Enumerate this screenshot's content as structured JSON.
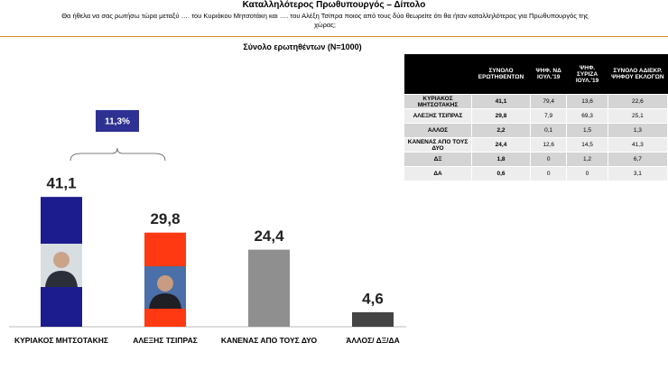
{
  "header": {
    "title": "Καταλληλότερος Πρωθυπουργός – Δίπολο",
    "subtitle": "Θα ήθελα να σας ρωτήσω τώρα μεταξύ …. του Κυριάκου Μητσοτάκη και …. του  Αλέξη Τσίπρα ποιος από τους δύο θεωρείτε ότι θα ήταν καταλληλότερος για Πρωθυπουργός της χώρας;",
    "base": "Σύνολο ερωτηθέντων (N=1000)"
  },
  "chart_data": {
    "type": "bar",
    "categories": [
      "ΚΥΡΙΑΚΟΣ ΜΗΤΣΟΤΑΚΗΣ",
      "ΑΛΕΞΗΣ ΤΣΙΠΡΑΣ",
      "ΚΑΝΕΝΑΣ ΑΠΟ ΤΟΥΣ ΔΥΟ",
      "ΆΛΛΟΣ/ ΔΞ/ΔΑ"
    ],
    "values": [
      41.1,
      29.8,
      24.4,
      4.6
    ],
    "value_labels": [
      "41,1",
      "29,8",
      "24,4",
      "4,6"
    ],
    "colors": [
      "#1c1c8f",
      "#ff3a12",
      "#8f8f8f",
      "#444444"
    ],
    "annotation": "11,3%"
  },
  "table": {
    "columns": [
      "ΣΥΝΟΛΟ ΕΡΩΤΗΘΕΝΤΩΝ",
      "ΨΗΦ. ΝΔ ΙΟΥΛ.'19",
      "ΨΗΦ. ΣΥΡΙΖΑ ΙΟΥΛ.'19",
      "ΣΥΝΟΛΟ ΑΔΙΕΚΡ. ΨΗΦΟΥ ΕΚΛΟΓΩΝ"
    ],
    "rows": [
      [
        "ΚΥΡΙΑΚΟΣ ΜΗΤΣΟΤΑΚΗΣ",
        "41,1",
        "79,4",
        "13,6",
        "22,6"
      ],
      [
        "ΑΛΕΞΗΣ ΤΣΙΠΡΑΣ",
        "29,8",
        "7,9",
        "69,3",
        "25,1"
      ],
      [
        "ΑΛΛΟΣ",
        "2,2",
        "0,1",
        "1,5",
        "1,3"
      ],
      [
        "ΚΑΝΕΝΑΣ ΑΠΟ ΤΟΥΣ ΔΥΟ",
        "24,4",
        "12,6",
        "14,5",
        "41,3"
      ],
      [
        "ΔΞ",
        "1,8",
        "0",
        "1,2",
        "6,7"
      ],
      [
        "ΔΑ",
        "0,6",
        "0",
        "0",
        "3,1"
      ]
    ]
  }
}
